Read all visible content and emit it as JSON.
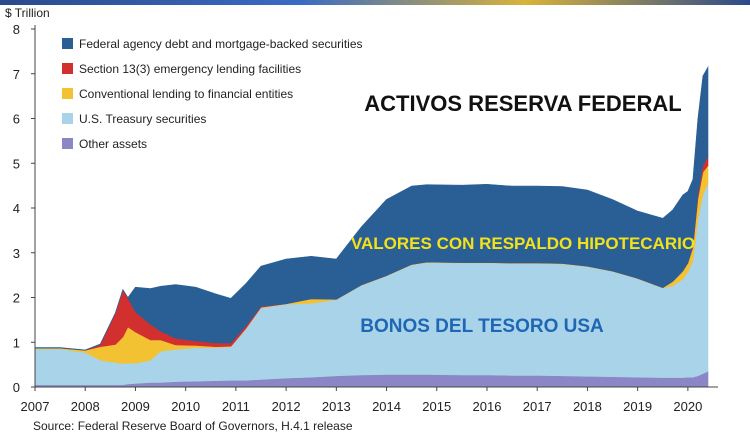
{
  "chart_data": {
    "type": "area",
    "stacked": true,
    "unit_label": "$ Trillion",
    "title": "ACTIVOS RESERVA FEDERAL",
    "annotations": [
      "VALORES CON RESPALDO HIPOTECARIO",
      "BONOS DEL TESORO USA"
    ],
    "source": "Source: Federal Reserve Board of Governors, H.4.1 release",
    "xlim": [
      2007,
      2020.6
    ],
    "ylim": [
      0,
      8
    ],
    "x_ticks": [
      "2007",
      "2008",
      "2009",
      "2010",
      "2011",
      "2012",
      "2013",
      "2014",
      "2015",
      "2016",
      "2017",
      "2018",
      "2019",
      "2020"
    ],
    "y_ticks": [
      "0",
      "1",
      "2",
      "3",
      "4",
      "5",
      "6",
      "7",
      "8"
    ],
    "legend_position": "top-left",
    "grid": false,
    "x": [
      2007.0,
      2007.5,
      2008.0,
      2008.3,
      2008.6,
      2008.75,
      2008.85,
      2009.0,
      2009.3,
      2009.5,
      2009.8,
      2010.2,
      2010.6,
      2010.9,
      2011.2,
      2011.5,
      2012.0,
      2012.5,
      2013.0,
      2013.5,
      2014.0,
      2014.5,
      2014.8,
      2015.5,
      2016.0,
      2016.5,
      2017.0,
      2017.5,
      2018.0,
      2018.5,
      2019.0,
      2019.5,
      2019.7,
      2019.9,
      2020.0,
      2020.1,
      2020.2,
      2020.3,
      2020.4
    ],
    "series": [
      {
        "name": "Other assets",
        "color": "#8b86c6",
        "values": [
          0.05,
          0.05,
          0.05,
          0.05,
          0.05,
          0.05,
          0.07,
          0.08,
          0.1,
          0.1,
          0.12,
          0.13,
          0.14,
          0.15,
          0.15,
          0.17,
          0.2,
          0.22,
          0.25,
          0.27,
          0.28,
          0.28,
          0.28,
          0.27,
          0.27,
          0.26,
          0.26,
          0.25,
          0.24,
          0.23,
          0.22,
          0.21,
          0.21,
          0.21,
          0.22,
          0.22,
          0.25,
          0.3,
          0.35
        ]
      },
      {
        "name": "U.S. Treasury securities",
        "color": "#a9d3e8",
        "values": [
          0.8,
          0.8,
          0.72,
          0.55,
          0.5,
          0.47,
          0.47,
          0.45,
          0.5,
          0.7,
          0.72,
          0.75,
          0.74,
          0.75,
          1.15,
          1.6,
          1.65,
          1.65,
          1.7,
          2.0,
          2.2,
          2.45,
          2.5,
          2.5,
          2.5,
          2.5,
          2.5,
          2.5,
          2.45,
          2.35,
          2.2,
          2.0,
          2.05,
          2.2,
          2.35,
          2.6,
          3.5,
          4.0,
          4.2
        ]
      },
      {
        "name": "Conventional lending to financial entities",
        "color": "#f2c233",
        "values": [
          0.02,
          0.02,
          0.05,
          0.3,
          0.4,
          0.6,
          0.8,
          0.7,
          0.45,
          0.25,
          0.1,
          0.05,
          0.02,
          0.01,
          0.01,
          0.01,
          0.01,
          0.1,
          0.01,
          0.01,
          0.01,
          0.01,
          0.01,
          0.01,
          0.01,
          0.01,
          0.01,
          0.01,
          0.01,
          0.01,
          0.01,
          0.01,
          0.1,
          0.18,
          0.2,
          0.3,
          0.45,
          0.5,
          0.4
        ]
      },
      {
        "name": "Section 13(3) emergency lending facilities",
        "color": "#d22f2f",
        "values": [
          0,
          0,
          0,
          0.05,
          0.7,
          1.05,
          0.65,
          0.45,
          0.35,
          0.2,
          0.15,
          0.1,
          0.08,
          0.07,
          0.05,
          0.02,
          0,
          0,
          0,
          0,
          0,
          0,
          0,
          0,
          0,
          0,
          0,
          0,
          0,
          0,
          0,
          0,
          0,
          0,
          0,
          0.02,
          0.1,
          0.15,
          0.2
        ]
      },
      {
        "name": "Federal agency debt and mortgage-backed securities",
        "color": "#2a5f96",
        "values": [
          0.01,
          0.01,
          0.01,
          0.01,
          0.01,
          0.01,
          0.01,
          0.55,
          0.8,
          1.0,
          1.2,
          1.2,
          1.1,
          1.0,
          0.95,
          0.9,
          1.0,
          0.95,
          0.9,
          1.3,
          1.7,
          1.75,
          1.73,
          1.73,
          1.75,
          1.72,
          1.72,
          1.72,
          1.7,
          1.6,
          1.5,
          1.55,
          1.6,
          1.7,
          1.6,
          1.5,
          1.7,
          2.0,
          2.0
        ]
      }
    ]
  }
}
